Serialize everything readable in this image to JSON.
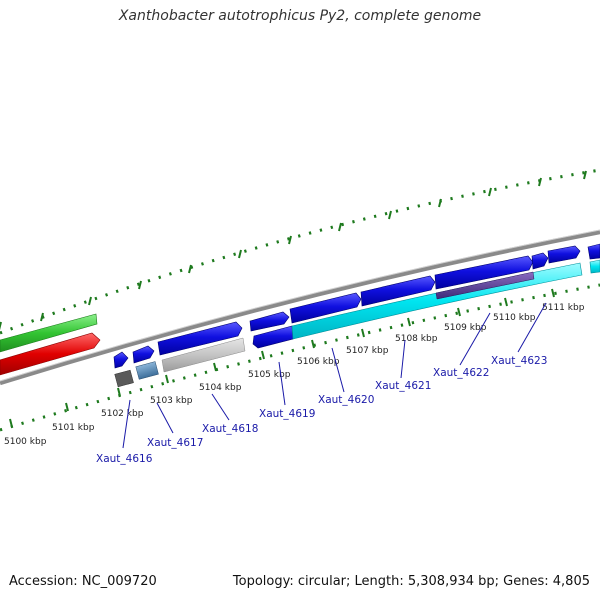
{
  "title": "Xanthobacter autotrophicus Py2, complete genome",
  "footer": {
    "accession": "Accession: NC_009720",
    "summary": "Topology: circular; Length: 5,308,934 bp; Genes: 4,805"
  },
  "ticks": [
    "5100 kbp",
    "5101 kbp",
    "5102 kbp",
    "5103 kbp",
    "5104 kbp",
    "5105 kbp",
    "5106 kbp",
    "5107 kbp",
    "5108 kbp",
    "5109 kbp",
    "5110 kbp",
    "5111 kbp"
  ],
  "gene_labels": [
    "Xaut_4616",
    "Xaut_4617",
    "Xaut_4618",
    "Xaut_4619",
    "Xaut_4620",
    "Xaut_4621",
    "Xaut_4622",
    "Xaut_4623"
  ],
  "colors": {
    "cds": "#1010e0",
    "blast_cyan": "#00e5f0",
    "backbone": "#8a8a8a",
    "dotted_track": "#1e7a1e",
    "red_feature": "#e00000",
    "green_feature": "#33c433",
    "label": "#1a1aa8"
  }
}
